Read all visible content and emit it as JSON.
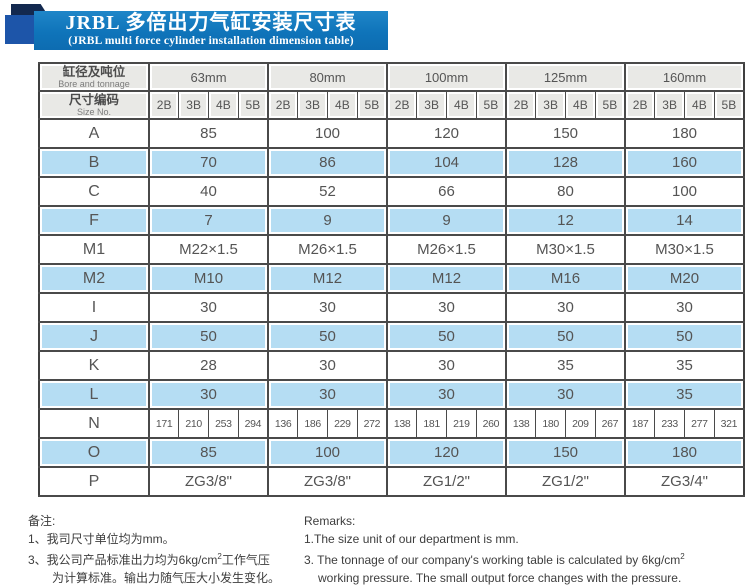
{
  "banner": {
    "title_cn": "JRBL 多倍出力气缸安装尺寸表",
    "title_en": "(JRBL multi force cylinder installation dimension table)"
  },
  "colors": {
    "banner_blue": "#0f74ba",
    "banner_tab_blue": "#1d55a9",
    "banner_fold_navy": "#13294f",
    "header_cell_bg": "#e9e9e6",
    "row_highlight_blue": "#b5ddf3",
    "grid_line": "#4a4a4a"
  },
  "table": {
    "corner": {
      "bore_cn": "缸径及吨位",
      "bore_en": "Bore and tonnage",
      "size_cn": "尺寸编码",
      "size_en": "Size No."
    },
    "groups": [
      "63mm",
      "80mm",
      "100mm",
      "125mm",
      "160mm"
    ],
    "size_codes": [
      "2B",
      "3B",
      "4B",
      "5B"
    ],
    "rows": [
      {
        "label": "A",
        "type": "merged",
        "values": [
          "85",
          "100",
          "120",
          "150",
          "180"
        ]
      },
      {
        "label": "B",
        "type": "merged",
        "values": [
          "70",
          "86",
          "104",
          "128",
          "160"
        ]
      },
      {
        "label": "C",
        "type": "merged",
        "values": [
          "40",
          "52",
          "66",
          "80",
          "100"
        ]
      },
      {
        "label": "F",
        "type": "merged",
        "values": [
          "7",
          "9",
          "9",
          "12",
          "14"
        ]
      },
      {
        "label": "M1",
        "type": "merged",
        "values": [
          "M22×1.5",
          "M26×1.5",
          "M26×1.5",
          "M30×1.5",
          "M30×1.5"
        ]
      },
      {
        "label": "M2",
        "type": "merged",
        "values": [
          "M10",
          "M12",
          "M12",
          "M16",
          "M20"
        ]
      },
      {
        "label": "I",
        "type": "merged",
        "values": [
          "30",
          "30",
          "30",
          "30",
          "30"
        ]
      },
      {
        "label": "J",
        "type": "merged",
        "values": [
          "50",
          "50",
          "50",
          "50",
          "50"
        ]
      },
      {
        "label": "K",
        "type": "merged",
        "values": [
          "28",
          "30",
          "30",
          "35",
          "35"
        ]
      },
      {
        "label": "L",
        "type": "merged",
        "values": [
          "30",
          "30",
          "30",
          "30",
          "35"
        ]
      },
      {
        "label": "N",
        "type": "cells",
        "values": [
          [
            "171",
            "210",
            "253",
            "294"
          ],
          [
            "136",
            "186",
            "229",
            "272"
          ],
          [
            "138",
            "181",
            "219",
            "260"
          ],
          [
            "138",
            "180",
            "209",
            "267"
          ],
          [
            "187",
            "233",
            "277",
            "321"
          ]
        ]
      },
      {
        "label": "O",
        "type": "merged",
        "values": [
          "85",
          "100",
          "120",
          "150",
          "180"
        ]
      },
      {
        "label": "P",
        "type": "merged",
        "values": [
          "ZG3/8\"",
          "ZG3/8\"",
          "ZG1/2\"",
          "ZG1/2\"",
          "ZG3/4\""
        ]
      }
    ]
  },
  "notes_cn": {
    "heading": "备注:",
    "line1": "1、我司尺寸单位均为mm。",
    "line2_pre": "3、我公司产品标准出力均为6kg/cm",
    "line2_sup": "2",
    "line2_post": "工作气压",
    "line3": "为计算标准。输出力随气压大小发生变化。"
  },
  "notes_en": {
    "heading": "Remarks:",
    "line1": "1.The size unit of our department is mm.",
    "line2_pre": "3. The tonnage of our company's working table is calculated by 6kg/cm",
    "line2_sup": "2",
    "line3": "working pressure. The small output force changes with the pressure."
  }
}
